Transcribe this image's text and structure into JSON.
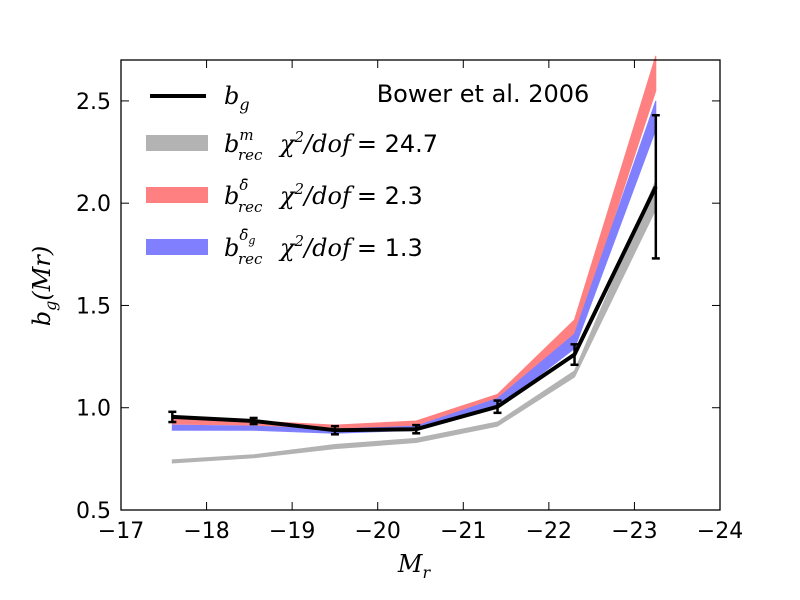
{
  "chart_data": {
    "type": "line",
    "title": "",
    "annotation": "Bower et al. 2006",
    "xlabel": "M_r",
    "ylabel": "b_g(Mr)",
    "xlim": [
      -17,
      -24
    ],
    "ylim": [
      0.5,
      2.7
    ],
    "xticks": [
      -17,
      -18,
      -19,
      -20,
      -21,
      -22,
      -23,
      -24
    ],
    "xtick_labels": [
      "−17",
      "−18",
      "−19",
      "−20",
      "−21",
      "−22",
      "−23",
      "−24"
    ],
    "yticks": [
      0.5,
      1.0,
      1.5,
      2.0,
      2.5
    ],
    "ytick_labels": [
      "0.5",
      "1.0",
      "1.5",
      "2.0",
      "2.5"
    ],
    "legend_position": "top-left",
    "x": [
      -17.6,
      -18.55,
      -19.5,
      -20.45,
      -21.4,
      -22.3,
      -23.25
    ],
    "series": [
      {
        "name": "b_rec^m",
        "legend_stat": "χ²/dof = 24.7",
        "style": "band",
        "color": "#b3b3b3",
        "lower": [
          0.73,
          0.755,
          0.8,
          0.83,
          0.91,
          1.15,
          1.97
        ],
        "upper": [
          0.745,
          0.77,
          0.82,
          0.85,
          0.93,
          1.18,
          2.11
        ]
      },
      {
        "name": "b_rec^δ̄",
        "legend_stat": "χ²/dof = 2.3",
        "style": "band",
        "color": "#ff8080",
        "lower": [
          0.92,
          0.915,
          0.895,
          0.905,
          1.02,
          1.34,
          2.55
        ],
        "upper": [
          0.945,
          0.935,
          0.915,
          0.935,
          1.065,
          1.43,
          2.72
        ]
      },
      {
        "name": "b_rec^δ̄_g",
        "legend_stat": "χ²/dof = 1.3",
        "style": "band",
        "color": "#8080ff",
        "lower": [
          0.89,
          0.89,
          0.875,
          0.89,
          1.0,
          1.29,
          2.36
        ],
        "upper": [
          0.915,
          0.91,
          0.895,
          0.91,
          1.045,
          1.36,
          2.5
        ]
      },
      {
        "name": "b_g",
        "style": "line-errorbar",
        "color": "#000000",
        "y": [
          0.955,
          0.935,
          0.89,
          0.895,
          1.005,
          1.26,
          2.08
        ],
        "err": [
          0.025,
          0.015,
          0.02,
          0.02,
          0.03,
          0.05,
          0.35
        ]
      }
    ]
  },
  "legend": {
    "bg_main": "b",
    "bg_sub": "g",
    "m_main": "b",
    "m_sub": "rec",
    "m_sup": "m",
    "d_main": "b",
    "d_sub": "rec",
    "d_sup": "δ̄",
    "dg_main": "b",
    "dg_sub": "rec",
    "dg_sup": "δ̄",
    "dg_supsub": "g",
    "chi_m": "= 24.7",
    "chi_d": "= 2.3",
    "chi_dg": "= 1.3",
    "chi_symbol": "χ",
    "chi_exp": "2",
    "chi_dof": "/dof"
  },
  "axis_labels": {
    "x_main": "M",
    "x_sub": "r",
    "y_main": "b",
    "y_sub": "g",
    "y_paren": "(Mr)"
  }
}
